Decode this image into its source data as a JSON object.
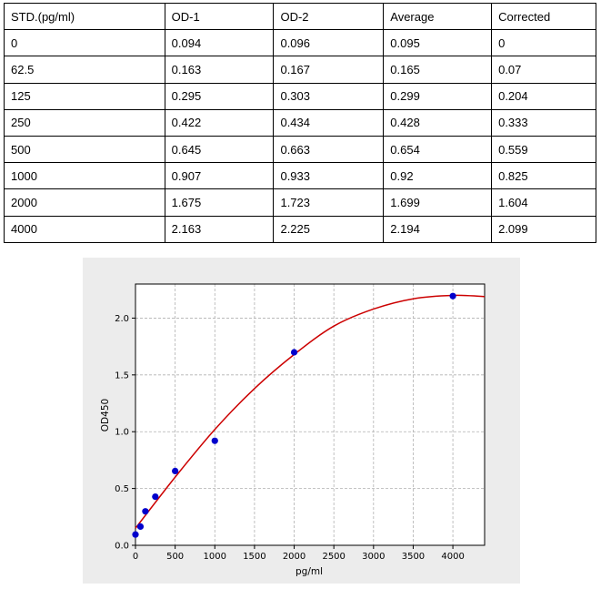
{
  "table": {
    "headers": [
      "STD.(pg/ml)",
      "OD-1",
      "OD-2",
      "Average",
      "Corrected"
    ],
    "rows": [
      [
        "0",
        "0.094",
        "0.096",
        "0.095",
        "0"
      ],
      [
        "62.5",
        "0.163",
        "0.167",
        "0.165",
        "0.07"
      ],
      [
        "125",
        "0.295",
        "0.303",
        "0.299",
        "0.204"
      ],
      [
        "250",
        "0.422",
        "0.434",
        "0.428",
        "0.333"
      ],
      [
        "500",
        "0.645",
        "0.663",
        "0.654",
        "0.559"
      ],
      [
        "1000",
        "0.907",
        "0.933",
        "0.92",
        "0.825"
      ],
      [
        "2000",
        "1.675",
        "1.723",
        "1.699",
        "1.604"
      ],
      [
        "4000",
        "2.163",
        "2.225",
        "2.194",
        "2.099"
      ]
    ]
  },
  "chart_data": {
    "type": "scatter",
    "xlabel": "pg/ml",
    "ylabel": "OD450",
    "xlim": [
      0,
      4400
    ],
    "ylim": [
      0,
      2.3
    ],
    "xticks": [
      0,
      500,
      1000,
      1500,
      2000,
      2500,
      3000,
      3500,
      4000
    ],
    "yticks": [
      0.0,
      0.5,
      1.0,
      1.5,
      2.0
    ],
    "xtick_labels": [
      "0",
      "500",
      "1000",
      "1500",
      "2000",
      "2500",
      "3000",
      "3500",
      "4000"
    ],
    "ytick_labels": [
      "0.0",
      "0.5",
      "1.0",
      "1.5",
      "2.0"
    ],
    "grid": true,
    "points": {
      "x": [
        0,
        62.5,
        125,
        250,
        500,
        1000,
        2000,
        4000
      ],
      "y": [
        0.095,
        0.165,
        0.299,
        0.428,
        0.654,
        0.92,
        1.699,
        2.194
      ],
      "color": "#0000cc"
    },
    "fit_curve": {
      "x": [
        0,
        500,
        1000,
        1500,
        2000,
        2500,
        3000,
        3500,
        4000,
        4400
      ],
      "y": [
        0.15,
        0.6,
        1.02,
        1.38,
        1.68,
        1.93,
        2.08,
        2.17,
        2.2,
        2.19
      ],
      "color": "#cc0000"
    }
  }
}
